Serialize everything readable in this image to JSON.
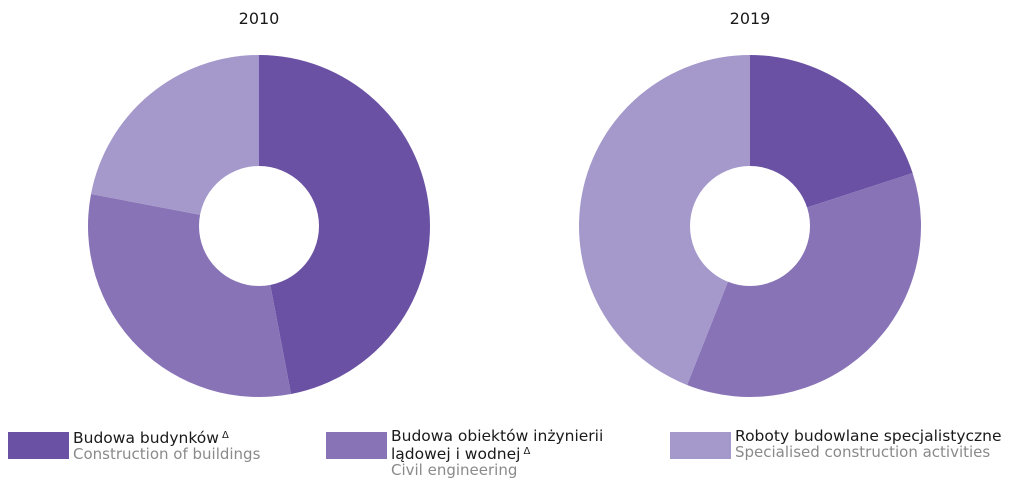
{
  "chart_data": [
    {
      "type": "pie",
      "title": "2010",
      "categories": [
        "Budowa budynków",
        "Budowa obiektów inżynierii lądowej i wodnej",
        "Roboty budowlane specjalistyczne"
      ],
      "values": [
        47,
        31,
        22
      ],
      "colors": [
        "#6a51a3",
        "#8873b7",
        "#a598cb"
      ],
      "donut": true
    },
    {
      "type": "pie",
      "title": "2019",
      "categories": [
        "Budowa budynków",
        "Budowa obiektów inżynierii lądowej i wodnej",
        "Roboty budowlane specjalistyczne"
      ],
      "values": [
        20,
        36,
        44
      ],
      "colors": [
        "#6a51a3",
        "#8873b7",
        "#a598cb"
      ],
      "donut": true
    }
  ],
  "legend": [
    {
      "label_pl": "Budowa budynków",
      "mark": "Δ",
      "label_en": "Construction of buildings",
      "color": "#6a51a3"
    },
    {
      "label_pl": "Budowa obiektów inżynierii",
      "label_pl_2": "lądowej i wodnej",
      "mark": "Δ",
      "label_en": "Civil engineering",
      "color": "#8873b7"
    },
    {
      "label_pl": "Roboty budowlane specjalistyczne",
      "mark": "",
      "label_en": "Specialised construction activities",
      "color": "#a598cb"
    }
  ]
}
